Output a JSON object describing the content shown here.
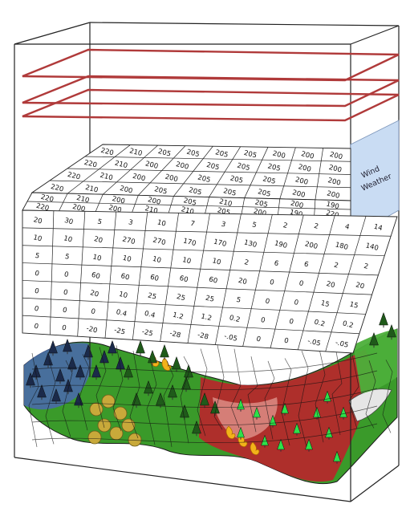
{
  "side_panel": {
    "line1": "Wind",
    "line2": "Weather"
  },
  "layers": [
    {
      "name": "layer-1",
      "rows": [
        [
          "220",
          "210",
          "205",
          "205",
          "205",
          "205",
          "200",
          "200",
          "200"
        ],
        [
          "220",
          "210",
          "200",
          "200",
          "205",
          "205",
          "205",
          "200",
          "200"
        ],
        [
          "220",
          "210",
          "200",
          "200",
          "205",
          "205",
          "205",
          "200",
          "200"
        ],
        [
          "220",
          "210",
          "200",
          "205",
          "205",
          "205",
          "205",
          "200",
          "200"
        ]
      ]
    },
    {
      "name": "layer-2",
      "rows": [
        [
          "220",
          "210",
          "200",
          "200",
          "205",
          "210",
          "205",
          "200",
          "190"
        ],
        [
          "220",
          "200",
          "200",
          "210",
          "210",
          "205",
          "200",
          "190",
          "220"
        ]
      ]
    },
    {
      "name": "layer-3",
      "rows": [
        [
          "20",
          "30",
          "5",
          "3",
          "10",
          "7",
          "3",
          "5",
          "2",
          "2",
          "4",
          "14"
        ],
        [
          "10",
          "10",
          "20",
          "270",
          "270",
          "170",
          "170",
          "130",
          "190",
          "200",
          "180",
          "140"
        ],
        [
          "5",
          "5",
          "10",
          "10",
          "10",
          "10",
          "10",
          "2",
          "6",
          "6",
          "2",
          "2"
        ],
        [
          "0",
          "0",
          "60",
          "60",
          "60",
          "60",
          "60",
          "20",
          "0",
          "0",
          "20",
          "20"
        ],
        [
          "0",
          "0",
          "20",
          "10",
          "25",
          "25",
          "25",
          "5",
          "0",
          "0",
          "15",
          "15"
        ],
        [
          "0",
          "0",
          "0",
          "0.4",
          "0.4",
          "1.2",
          "1.2",
          "0.2",
          "0",
          "0",
          "0.2",
          "0.2"
        ],
        [
          "0",
          "0",
          "-20",
          "-25",
          "-25",
          "-28",
          "-28",
          "-.05",
          "0",
          "0",
          "-.05",
          "-.05"
        ]
      ]
    }
  ],
  "colors": {
    "frame": "#222222",
    "weather_lines": "#b03a3a",
    "panel_fill": "#c9dcf3",
    "grass": "#3a9a2a",
    "forest_blue": "#4a6aa8",
    "burned": "#b8262b",
    "shrub": "#c8a93a",
    "fire": "#f2b21a",
    "rock": "#e6e6e6"
  }
}
